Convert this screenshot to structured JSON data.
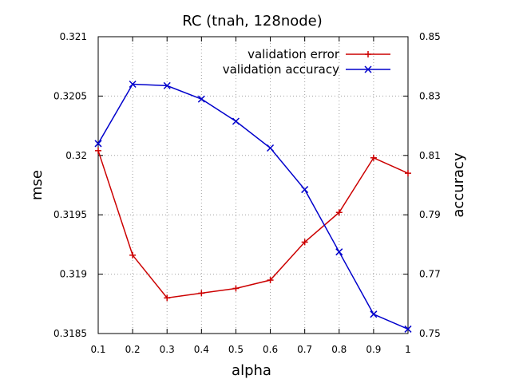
{
  "chart_data": {
    "type": "line",
    "title": "RC (tnah, 128node)",
    "xlabel": "alpha",
    "ylabel": "mse",
    "y2label": "accuracy",
    "x": [
      0.1,
      0.2,
      0.3,
      0.4,
      0.5,
      0.6,
      0.7,
      0.8,
      0.9,
      1.0
    ],
    "xticks": [
      "0.1",
      "0.2",
      "0.3",
      "0.4",
      "0.5",
      "0.6",
      "0.7",
      "0.8",
      "0.9",
      "1"
    ],
    "xlim": [
      0.1,
      1.0
    ],
    "ylim": [
      0.3185,
      0.321
    ],
    "yticks": [
      "0.3185",
      "0.319",
      "0.3195",
      "0.32",
      "0.3205",
      "0.321"
    ],
    "y2lim": [
      0.75,
      0.85
    ],
    "y2ticks": [
      "0.75",
      "0.77",
      "0.79",
      "0.81",
      "0.83",
      "0.85"
    ],
    "grid": true,
    "legend_position": "top-right",
    "series": [
      {
        "name": "validation error",
        "axis": "left",
        "color": "#cc0000",
        "marker": "plus",
        "values": [
          0.32004,
          0.31916,
          0.3188,
          0.31884,
          0.31888,
          0.31895,
          0.31927,
          0.31952,
          0.31998,
          0.31985
        ]
      },
      {
        "name": "validation accuracy",
        "axis": "right",
        "color": "#0000cc",
        "marker": "x",
        "values": [
          0.814,
          0.834,
          0.8335,
          0.829,
          0.8215,
          0.8125,
          0.7985,
          0.7775,
          0.7565,
          0.7515
        ]
      }
    ]
  }
}
